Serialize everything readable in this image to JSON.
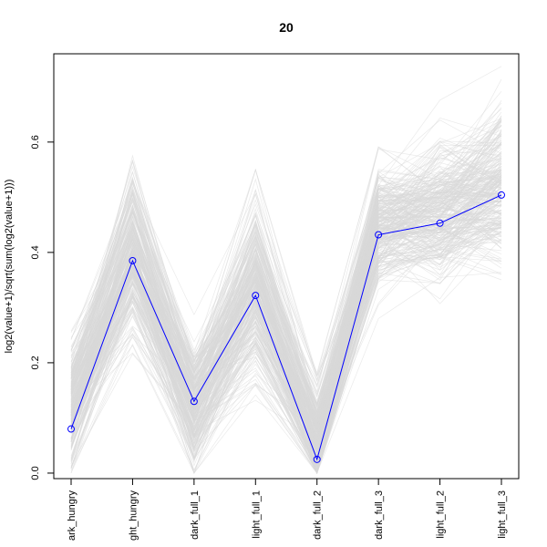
{
  "chart_data": {
    "type": "line",
    "title": "20",
    "xlabel": "",
    "ylabel": "log2(value+1)/sqrt(sum(log2(value+1)))",
    "categories": [
      "dark_hungry",
      "light_hungry",
      "dark_full_1",
      "light_full_1",
      "dark_full_2",
      "dark_full_3",
      "light_full_2",
      "light_full_3"
    ],
    "tick_labels_shown": [
      "ark_hungry",
      "ght_hungry",
      "dark_full_1",
      "light_full_1",
      "dark_full_2",
      "dark_full_3",
      "light_full_2",
      "light_full_3"
    ],
    "ylim": [
      -0.01,
      0.76
    ],
    "yticks": [
      0.0,
      0.2,
      0.4,
      0.6
    ],
    "ytick_labels": [
      "0.0",
      "0.2",
      "0.4",
      "0.6"
    ],
    "grid": false,
    "highlight_series": {
      "color": "#0000ff",
      "values": [
        0.08,
        0.385,
        0.13,
        0.322,
        0.025,
        0.432,
        0.453,
        0.504
      ]
    },
    "background_series": {
      "color": "#d9d9d9",
      "count": 300,
      "min_values": [
        0.0,
        0.15,
        0.0,
        0.0,
        0.0,
        0.28,
        0.23,
        0.28
      ],
      "max_values": [
        0.38,
        0.64,
        0.39,
        0.55,
        0.33,
        0.64,
        0.69,
        0.75
      ],
      "typical_values": [
        0.12,
        0.4,
        0.12,
        0.33,
        0.06,
        0.45,
        0.47,
        0.52
      ]
    }
  }
}
